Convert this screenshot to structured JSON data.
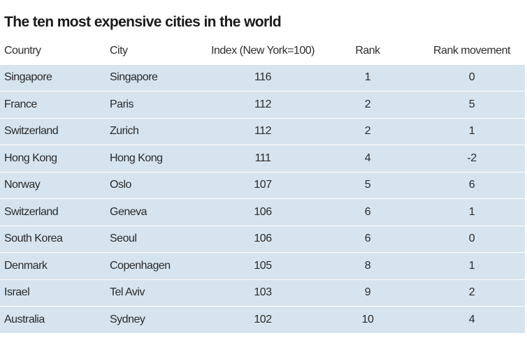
{
  "chart_data": {
    "type": "table",
    "title": "The ten most expensive cities in the world",
    "columns": [
      "Country",
      "City",
      "Index (New York=100)",
      "Rank",
      "Rank movement"
    ],
    "rows": [
      {
        "country": "Singapore",
        "city": "Singapore",
        "index": "116",
        "rank": "1",
        "movement": "0"
      },
      {
        "country": "France",
        "city": "Paris",
        "index": "112",
        "rank": "2",
        "movement": "5"
      },
      {
        "country": "Switzerland",
        "city": "Zurich",
        "index": "112",
        "rank": "2",
        "movement": "1"
      },
      {
        "country": "Hong Kong",
        "city": "Hong Kong",
        "index": "111",
        "rank": "4",
        "movement": "-2"
      },
      {
        "country": "Norway",
        "city": "Oslo",
        "index": "107",
        "rank": "5",
        "movement": "6"
      },
      {
        "country": "Switzerland",
        "city": "Geneva",
        "index": "106",
        "rank": "6",
        "movement": "1"
      },
      {
        "country": "South Korea",
        "city": "Seoul",
        "index": "106",
        "rank": "6",
        "movement": "0"
      },
      {
        "country": "Denmark",
        "city": "Copenhagen",
        "index": "105",
        "rank": "8",
        "movement": "1"
      },
      {
        "country": "Israel",
        "city": "Tel Aviv",
        "index": "103",
        "rank": "9",
        "movement": "2"
      },
      {
        "country": "Australia",
        "city": "Sydney",
        "index": "102",
        "rank": "10",
        "movement": "4"
      }
    ],
    "colors": {
      "row_background": "#d6e4ef",
      "row_separator": "#ffffff",
      "text": "#2a2a2a"
    }
  }
}
